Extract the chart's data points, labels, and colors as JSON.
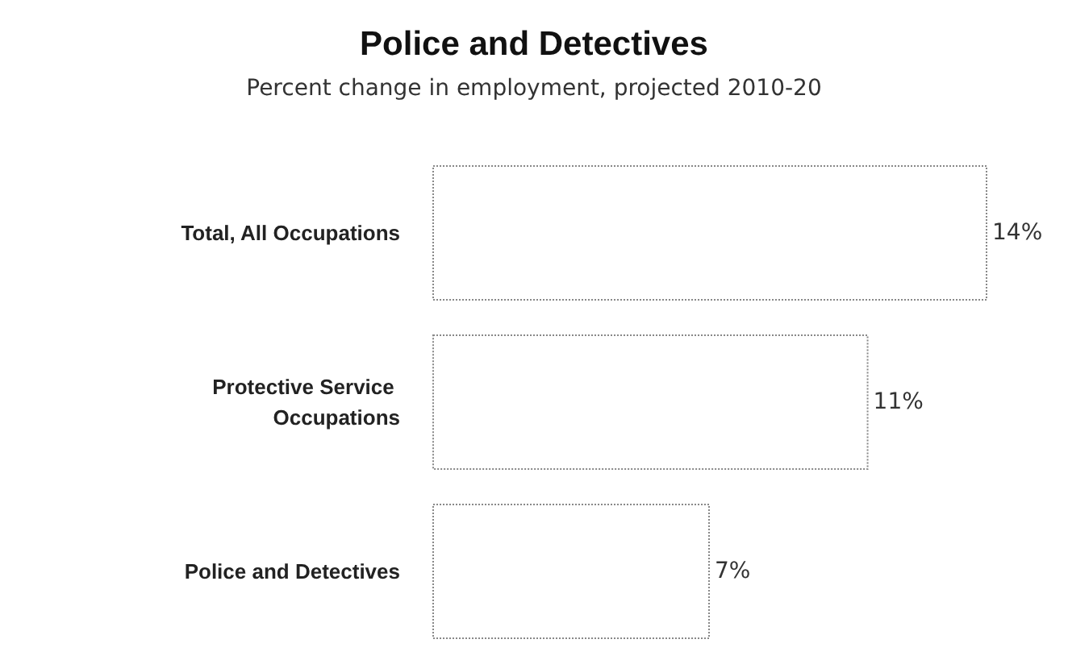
{
  "chart_data": {
    "type": "bar",
    "orientation": "horizontal",
    "title": "Police and Detectives",
    "subtitle": "Percent change in employment, projected 2010-20",
    "categories": [
      "Total, All Occupations",
      "Protective Service Occupations",
      "Police and Detectives"
    ],
    "values": [
      14,
      11,
      7
    ],
    "color": "#ffffff",
    "value_labels": [
      "14%",
      "11%",
      "7%"
    ]
  }
}
